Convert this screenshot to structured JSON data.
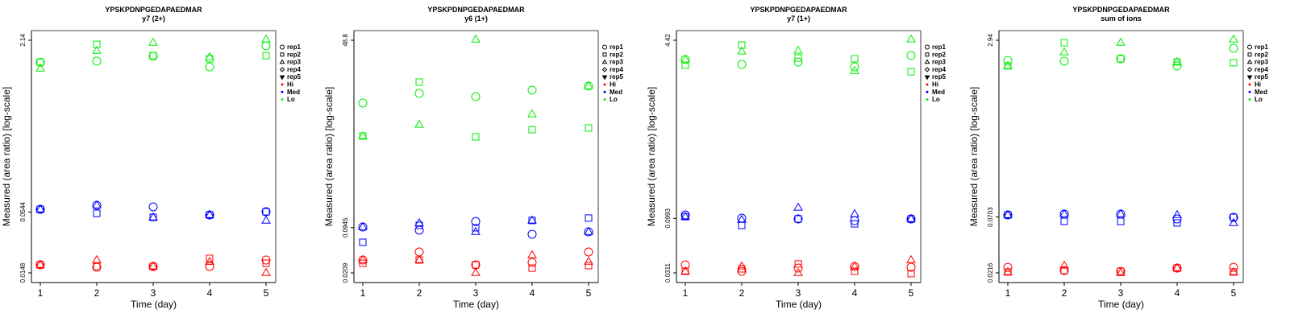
{
  "colors": {
    "Hi": "#ff0000",
    "Med": "#0000ff",
    "Lo": "#00ee00",
    "axis": "#000000",
    "frame_shadow": "#808080"
  },
  "legend": {
    "placement": "right",
    "items": [
      {
        "label": "rep1",
        "symbol": "circle"
      },
      {
        "label": "rep2",
        "symbol": "square"
      },
      {
        "label": "rep3",
        "symbol": "triangle-up"
      },
      {
        "label": "rep4",
        "symbol": "diamond"
      },
      {
        "label": "rep5",
        "symbol": "triangle-down"
      },
      {
        "label": "Hi",
        "symbol": "dot",
        "group": "Hi"
      },
      {
        "label": "Med",
        "symbol": "dot",
        "group": "Med"
      },
      {
        "label": "Lo",
        "symbol": "dot",
        "group": "Lo"
      }
    ]
  },
  "chart_data": [
    {
      "type": "scatter",
      "title": "YPSKPDNPGEDAPAEDMAR",
      "subtitle": "y7 (2+)",
      "xlabel": "Time (day)",
      "ylabel": "Measured (area ratio) [log-scale]",
      "yscale": "log",
      "x_ticks": [
        1,
        2,
        3,
        4,
        5
      ],
      "y_ticks": [
        0.0148,
        0.0544,
        2.14
      ],
      "y_tick_labels": [
        "0.0148",
        "0.0544",
        "2.14"
      ],
      "xlim": [
        1,
        5
      ],
      "ylim": [
        0.0148,
        2.14
      ],
      "grid": false,
      "series": [
        {
          "group": "Lo",
          "rep": "rep1",
          "x": [
            1,
            2,
            3,
            4,
            5
          ],
          "y": [
            1.34,
            1.37,
            1.52,
            1.21,
            1.9
          ]
        },
        {
          "group": "Lo",
          "rep": "rep2",
          "x": [
            1,
            2,
            3,
            4,
            5
          ],
          "y": [
            1.34,
            1.96,
            1.54,
            1.44,
            1.54
          ]
        },
        {
          "group": "Lo",
          "rep": "rep3",
          "x": [
            1,
            2,
            3,
            4,
            5
          ],
          "y": [
            1.17,
            1.71,
            2.03,
            1.49,
            2.18
          ]
        },
        {
          "group": "Med",
          "rep": "rep1",
          "x": [
            1,
            2,
            3,
            4,
            5
          ],
          "y": [
            0.0576,
            0.0628,
            0.0607,
            0.0511,
            0.0547
          ]
        },
        {
          "group": "Med",
          "rep": "rep2",
          "x": [
            1,
            2,
            3,
            4,
            5
          ],
          "y": [
            0.0576,
            0.0529,
            0.0485,
            0.0511,
            0.0547
          ]
        },
        {
          "group": "Med",
          "rep": "rep3",
          "x": [
            1,
            2,
            3,
            4,
            5
          ],
          "y": [
            0.0576,
            0.0628,
            0.0485,
            0.0511,
            0.0453
          ]
        },
        {
          "group": "Hi",
          "rep": "rep1",
          "x": [
            1,
            2,
            3,
            4,
            5
          ],
          "y": [
            0.0176,
            0.0167,
            0.017,
            0.017,
            0.0195
          ]
        },
        {
          "group": "Hi",
          "rep": "rep2",
          "x": [
            1,
            2,
            3,
            4,
            5
          ],
          "y": [
            0.0176,
            0.017,
            0.017,
            0.0202,
            0.0182
          ]
        },
        {
          "group": "Hi",
          "rep": "rep3",
          "x": [
            1,
            2,
            3,
            4,
            5
          ],
          "y": [
            0.0176,
            0.0195,
            0.017,
            0.0188,
            0.0148
          ]
        }
      ]
    },
    {
      "type": "scatter",
      "title": "YPSKPDNPGEDAPAEDMAR",
      "subtitle": "y6 (1+)",
      "xlabel": "Time (day)",
      "ylabel": "Measured (area ratio) [log-scale]",
      "yscale": "log",
      "x_ticks": [
        1,
        2,
        3,
        4,
        5
      ],
      "y_ticks": [
        0.0209,
        0.0945,
        48.8
      ],
      "y_tick_labels": [
        "0.0209",
        "0.0945",
        "48.8"
      ],
      "xlim": [
        1,
        5
      ],
      "ylim": [
        0.0209,
        48.8
      ],
      "grid": false,
      "series": [
        {
          "group": "Lo",
          "rep": "rep1",
          "x": [
            1,
            2,
            3,
            4,
            5
          ],
          "y": [
            6.02,
            8.3,
            7.46,
            9.24,
            10.6
          ]
        },
        {
          "group": "Lo",
          "rep": "rep2",
          "x": [
            1,
            2,
            3,
            4,
            5
          ],
          "y": [
            2.0,
            12.1,
            1.95,
            2.48,
            2.62
          ]
        },
        {
          "group": "Lo",
          "rep": "rep3",
          "x": [
            1,
            2,
            3,
            4,
            5
          ],
          "y": [
            2.0,
            2.92,
            50.1,
            4.13,
            10.6
          ]
        },
        {
          "group": "Med",
          "rep": "rep1",
          "x": [
            1,
            2,
            3,
            4,
            5
          ],
          "y": [
            0.0965,
            0.0867,
            0.116,
            0.0759,
            0.0822
          ]
        },
        {
          "group": "Med",
          "rep": "rep2",
          "x": [
            1,
            2,
            3,
            4,
            5
          ],
          "y": [
            0.058,
            0.102,
            0.094,
            0.12,
            0.13
          ]
        },
        {
          "group": "Med",
          "rep": "rep3",
          "x": [
            1,
            2,
            3,
            4,
            5
          ],
          "y": [
            0.0965,
            0.11,
            0.0822,
            0.12,
            0.0822
          ]
        },
        {
          "group": "Hi",
          "rep": "rep1",
          "x": [
            1,
            2,
            3,
            4,
            5
          ],
          "y": [
            0.0321,
            0.042,
            0.0273,
            0.0296,
            0.042
          ]
        },
        {
          "group": "Hi",
          "rep": "rep2",
          "x": [
            1,
            2,
            3,
            4,
            5
          ],
          "y": [
            0.0288,
            0.0321,
            0.0273,
            0.0245,
            0.0266
          ]
        },
        {
          "group": "Hi",
          "rep": "rep3",
          "x": [
            1,
            2,
            3,
            4,
            5
          ],
          "y": [
            0.0321,
            0.0321,
            0.0209,
            0.0378,
            0.0304
          ]
        }
      ]
    },
    {
      "type": "scatter",
      "title": "YPSKPDNPGEDAPAEDMAR",
      "subtitle": "y7 (1+)",
      "xlabel": "Time (day)",
      "ylabel": "Measured (area ratio) [log-scale]",
      "yscale": "log",
      "x_ticks": [
        1,
        2,
        3,
        4,
        5
      ],
      "y_ticks": [
        0.0311,
        0.0993,
        4.42
      ],
      "y_tick_labels": [
        "0.0311",
        "0.0993",
        "4.42"
      ],
      "xlim": [
        1,
        5
      ],
      "ylim": [
        0.0311,
        4.42
      ],
      "grid": false,
      "series": [
        {
          "group": "Lo",
          "rep": "rep1",
          "x": [
            1,
            2,
            3,
            4,
            5
          ],
          "y": [
            2.93,
            2.64,
            2.78,
            2.51,
            3.19
          ]
        },
        {
          "group": "Lo",
          "rep": "rep2",
          "x": [
            1,
            2,
            3,
            4,
            5
          ],
          "y": [
            2.6,
            3.99,
            3.03,
            2.98,
            2.26
          ]
        },
        {
          "group": "Lo",
          "rep": "rep3",
          "x": [
            1,
            2,
            3,
            4,
            5
          ],
          "y": [
            2.93,
            3.48,
            3.54,
            2.3,
            4.5
          ]
        },
        {
          "group": "Med",
          "rep": "rep1",
          "x": [
            1,
            2,
            3,
            4,
            5
          ],
          "y": [
            0.107,
            0.0998,
            0.0981,
            0.0948,
            0.0981
          ]
        },
        {
          "group": "Med",
          "rep": "rep2",
          "x": [
            1,
            2,
            3,
            4,
            5
          ],
          "y": [
            0.103,
            0.0855,
            0.0981,
            0.0885,
            0.0981
          ]
        },
        {
          "group": "Med",
          "rep": "rep3",
          "x": [
            1,
            2,
            3,
            4,
            5
          ],
          "y": [
            0.103,
            0.0965,
            0.125,
            0.109,
            0.0981
          ]
        },
        {
          "group": "Hi",
          "rep": "rep1",
          "x": [
            1,
            2,
            3,
            4,
            5
          ],
          "y": [
            0.0369,
            0.0322,
            0.0345,
            0.0357,
            0.0351
          ]
        },
        {
          "group": "Hi",
          "rep": "rep2",
          "x": [
            1,
            2,
            3,
            4,
            5
          ],
          "y": [
            0.0322,
            0.0339,
            0.0376,
            0.0322,
            0.0306
          ]
        },
        {
          "group": "Hi",
          "rep": "rep3",
          "x": [
            1,
            2,
            3,
            4,
            5
          ],
          "y": [
            0.0322,
            0.0357,
            0.0311,
            0.0357,
            0.0409
          ]
        }
      ]
    },
    {
      "type": "scatter",
      "title": "YPSKPDNPGEDAPAEDMAR",
      "subtitle": "sum of ions",
      "xlabel": "Time (day)",
      "ylabel": "Measured (area ratio) [log-scale]",
      "yscale": "log",
      "x_ticks": [
        1,
        2,
        3,
        4,
        5
      ],
      "y_ticks": [
        0.0216,
        0.0703,
        2.94
      ],
      "y_tick_labels": [
        "0.0216",
        "0.0703",
        "2.94"
      ],
      "xlim": [
        1,
        5
      ],
      "ylim": [
        0.0216,
        2.94
      ],
      "grid": false,
      "series": [
        {
          "group": "Lo",
          "rep": "rep1",
          "x": [
            1,
            2,
            3,
            4,
            5
          ],
          "y": [
            1.92,
            1.89,
            1.99,
            1.71,
            2.48
          ]
        },
        {
          "group": "Lo",
          "rep": "rep2",
          "x": [
            1,
            2,
            3,
            4,
            5
          ],
          "y": [
            1.71,
            2.79,
            1.99,
            1.86,
            1.83
          ]
        },
        {
          "group": "Lo",
          "rep": "rep3",
          "x": [
            1,
            2,
            3,
            4,
            5
          ],
          "y": [
            1.71,
            2.28,
            2.79,
            1.86,
            2.99
          ]
        },
        {
          "group": "Med",
          "rep": "rep1",
          "x": [
            1,
            2,
            3,
            4,
            5
          ],
          "y": [
            0.0735,
            0.0748,
            0.0748,
            0.0675,
            0.0698
          ]
        },
        {
          "group": "Med",
          "rep": "rep2",
          "x": [
            1,
            2,
            3,
            4,
            5
          ],
          "y": [
            0.0735,
            0.0641,
            0.0641,
            0.062,
            0.0698
          ]
        },
        {
          "group": "Med",
          "rep": "rep3",
          "x": [
            1,
            2,
            3,
            4,
            5
          ],
          "y": [
            0.0735,
            0.0748,
            0.0748,
            0.0735,
            0.062
          ]
        },
        {
          "group": "Hi",
          "rep": "rep1",
          "x": [
            1,
            2,
            3,
            4,
            5
          ],
          "y": [
            0.0243,
            0.0227,
            0.0223,
            0.0239,
            0.0243
          ]
        },
        {
          "group": "Hi",
          "rep": "rep2",
          "x": [
            1,
            2,
            3,
            4,
            5
          ],
          "y": [
            0.022,
            0.0227,
            0.0223,
            0.0239,
            0.022
          ]
        },
        {
          "group": "Hi",
          "rep": "rep3",
          "x": [
            1,
            2,
            3,
            4,
            5
          ],
          "y": [
            0.022,
            0.0252,
            0.0216,
            0.0239,
            0.022
          ]
        }
      ]
    }
  ]
}
